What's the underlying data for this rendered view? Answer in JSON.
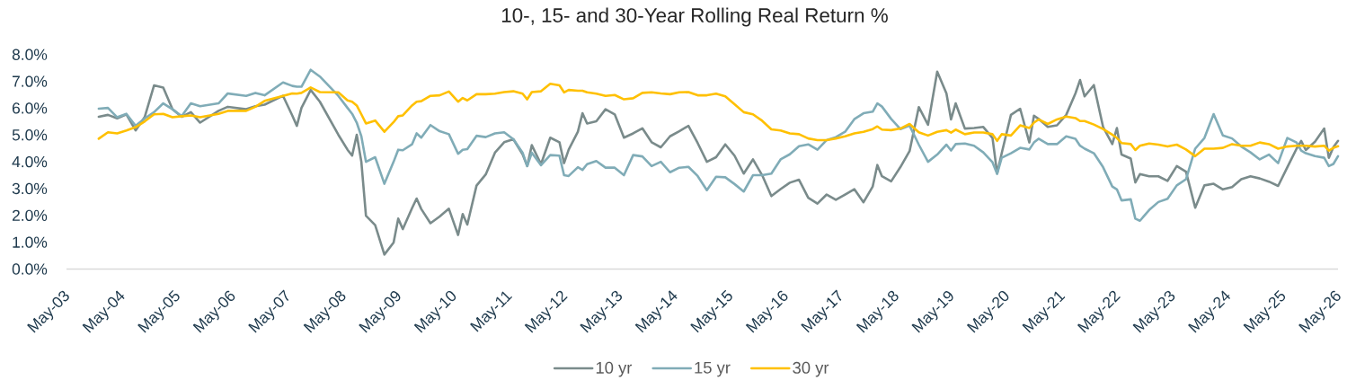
{
  "chart_data": {
    "type": "line",
    "title": "10-, 15- and 30-Year Rolling Real Return %",
    "x": [
      "2003-12",
      "2004-02",
      "2004-04",
      "2004-06",
      "2004-08",
      "2004-10",
      "2004-12",
      "2005-02",
      "2005-04",
      "2005-06",
      "2005-08",
      "2005-10",
      "2006-02",
      "2006-04",
      "2006-08",
      "2006-10",
      "2006-12",
      "2007-04",
      "2007-06",
      "2007-07",
      "2007-08",
      "2007-10",
      "2007-12",
      "2008-04",
      "2008-06",
      "2008-07",
      "2008-08",
      "2008-09",
      "2008-10",
      "2008-12",
      "2009-02",
      "2009-04",
      "2009-05",
      "2009-06",
      "2009-08",
      "2009-09",
      "2009-10",
      "2009-12",
      "2010-02",
      "2010-04",
      "2010-06",
      "2010-07",
      "2010-08",
      "2010-10",
      "2010-12",
      "2011-02",
      "2011-04",
      "2011-06",
      "2011-08",
      "2011-09",
      "2011-10",
      "2011-12",
      "2012-02",
      "2012-04",
      "2012-05",
      "2012-06",
      "2012-08",
      "2012-09",
      "2012-10",
      "2012-12",
      "2013-02",
      "2013-04",
      "2013-06",
      "2013-08",
      "2013-10",
      "2013-12",
      "2014-02",
      "2014-04",
      "2014-06",
      "2014-08",
      "2014-10",
      "2014-12",
      "2015-02",
      "2015-04",
      "2015-06",
      "2015-08",
      "2015-10",
      "2015-12",
      "2016-02",
      "2016-04",
      "2016-06",
      "2016-08",
      "2016-10",
      "2016-12",
      "2017-02",
      "2017-04",
      "2017-06",
      "2017-08",
      "2017-10",
      "2017-12",
      "2018-01",
      "2018-02",
      "2018-04",
      "2018-06",
      "2018-08",
      "2018-10",
      "2018-12",
      "2019-02",
      "2019-04",
      "2019-05",
      "2019-06",
      "2019-08",
      "2019-10",
      "2019-12",
      "2020-02",
      "2020-03",
      "2020-04",
      "2020-06",
      "2020-08",
      "2020-10",
      "2020-11",
      "2020-12",
      "2021-02",
      "2021-04",
      "2021-06",
      "2021-08",
      "2021-09",
      "2021-10",
      "2021-12",
      "2022-02",
      "2022-04",
      "2022-05",
      "2022-06",
      "2022-08",
      "2022-09",
      "2022-10",
      "2022-12",
      "2023-02",
      "2023-04",
      "2023-06",
      "2023-08",
      "2023-10",
      "2023-12",
      "2024-02",
      "2024-04",
      "2024-06",
      "2024-08",
      "2024-10",
      "2024-12",
      "2025-02",
      "2025-04",
      "2025-06",
      "2025-08",
      "2025-09",
      "2025-10",
      "2025-12",
      "2026-02",
      "2026-03",
      "2026-04",
      "2026-05"
    ],
    "series": [
      {
        "name": "10 yr",
        "color": "#7a8b8b",
        "values": [
          5.68,
          5.75,
          5.62,
          5.77,
          5.17,
          5.68,
          6.85,
          6.77,
          5.96,
          5.68,
          5.85,
          5.46,
          5.9,
          6.05,
          5.96,
          6.07,
          6.13,
          6.46,
          5.73,
          5.34,
          6.01,
          6.68,
          6.24,
          5.01,
          4.45,
          4.23,
          5.01,
          4.0,
          1.99,
          1.64,
          0.54,
          0.99,
          1.88,
          1.49,
          2.27,
          2.63,
          2.24,
          1.71,
          1.96,
          2.25,
          1.27,
          2.05,
          1.66,
          3.11,
          3.53,
          4.34,
          4.73,
          4.84,
          4.28,
          3.84,
          4.62,
          3.91,
          4.9,
          4.73,
          3.95,
          4.45,
          5.12,
          5.81,
          5.43,
          5.51,
          5.96,
          5.77,
          4.9,
          5.06,
          5.25,
          4.73,
          4.54,
          4.95,
          5.14,
          5.34,
          4.7,
          4.0,
          4.17,
          4.65,
          4.23,
          3.56,
          4.09,
          3.5,
          2.72,
          2.98,
          3.22,
          3.33,
          2.66,
          2.44,
          2.78,
          2.58,
          2.78,
          2.98,
          2.49,
          3.08,
          3.88,
          3.46,
          3.27,
          3.8,
          4.4,
          6.04,
          5.38,
          7.36,
          6.55,
          5.58,
          6.18,
          5.24,
          5.26,
          5.3,
          4.89,
          3.57,
          4.32,
          5.75,
          5.98,
          4.72,
          5.72,
          5.6,
          5.3,
          5.36,
          5.75,
          6.55,
          7.05,
          6.44,
          6.86,
          5.3,
          4.66,
          5.26,
          4.27,
          4.12,
          3.23,
          3.54,
          3.46,
          3.46,
          3.29,
          3.84,
          3.63,
          2.29,
          3.12,
          3.18,
          2.97,
          3.06,
          3.35,
          3.46,
          3.38,
          3.26,
          3.1,
          3.8,
          4.49,
          4.78,
          4.44,
          4.75,
          5.24,
          4.15,
          4.55,
          4.78
        ]
      },
      {
        "name": "15 yr",
        "color": "#80acb7",
        "values": [
          5.98,
          6.01,
          5.66,
          5.79,
          5.34,
          5.62,
          5.85,
          6.18,
          5.96,
          5.7,
          6.18,
          6.07,
          6.18,
          6.55,
          6.46,
          6.57,
          6.48,
          6.96,
          6.83,
          6.8,
          6.8,
          7.43,
          7.18,
          6.46,
          6.01,
          5.79,
          5.46,
          4.95,
          4.0,
          4.17,
          3.18,
          4.0,
          4.45,
          4.43,
          4.65,
          5.06,
          4.9,
          5.37,
          5.14,
          5.03,
          4.3,
          4.45,
          4.47,
          4.97,
          4.92,
          5.06,
          5.1,
          4.84,
          4.34,
          3.84,
          4.34,
          3.87,
          4.25,
          4.23,
          3.5,
          3.47,
          3.8,
          3.7,
          3.91,
          4.03,
          3.78,
          3.78,
          3.5,
          4.25,
          4.2,
          3.84,
          4.0,
          3.61,
          3.78,
          3.81,
          3.47,
          2.94,
          3.44,
          3.42,
          3.17,
          2.89,
          3.5,
          3.5,
          3.56,
          4.09,
          4.28,
          4.58,
          4.65,
          4.45,
          4.81,
          4.92,
          5.12,
          5.59,
          5.81,
          5.87,
          6.18,
          6.06,
          5.6,
          5.22,
          5.35,
          4.64,
          4.0,
          4.27,
          4.64,
          4.42,
          4.66,
          4.68,
          4.6,
          4.35,
          3.98,
          3.55,
          4.15,
          4.32,
          4.52,
          4.46,
          4.72,
          4.86,
          4.66,
          4.66,
          4.95,
          4.86,
          4.6,
          4.49,
          4.32,
          3.8,
          3.08,
          2.97,
          2.56,
          2.6,
          1.88,
          1.8,
          2.2,
          2.5,
          2.62,
          3.12,
          3.35,
          4.49,
          4.89,
          5.78,
          4.98,
          4.87,
          4.57,
          4.35,
          4.09,
          4.27,
          3.95,
          4.89,
          4.72,
          4.42,
          4.32,
          4.21,
          4.15,
          3.84,
          3.92,
          4.21
        ]
      },
      {
        "name": "30 yr",
        "color": "#ffc000",
        "values": [
          4.86,
          5.1,
          5.06,
          5.17,
          5.29,
          5.51,
          5.77,
          5.79,
          5.66,
          5.7,
          5.73,
          5.66,
          5.79,
          5.9,
          5.9,
          6.05,
          6.27,
          6.46,
          6.55,
          6.54,
          6.57,
          6.77,
          6.6,
          6.59,
          6.29,
          6.24,
          6.1,
          5.77,
          5.43,
          5.54,
          5.12,
          5.48,
          5.7,
          5.73,
          6.1,
          6.24,
          6.26,
          6.46,
          6.48,
          6.62,
          6.24,
          6.38,
          6.29,
          6.52,
          6.52,
          6.54,
          6.6,
          6.63,
          6.54,
          6.33,
          6.6,
          6.63,
          6.91,
          6.85,
          6.59,
          6.68,
          6.65,
          6.65,
          6.59,
          6.54,
          6.46,
          6.49,
          6.33,
          6.37,
          6.57,
          6.59,
          6.55,
          6.52,
          6.59,
          6.6,
          6.48,
          6.48,
          6.54,
          6.44,
          6.15,
          5.85,
          5.77,
          5.53,
          5.21,
          5.17,
          5.06,
          5.03,
          4.87,
          4.81,
          4.81,
          4.87,
          4.95,
          5.06,
          5.12,
          5.22,
          5.32,
          5.2,
          5.18,
          5.24,
          5.41,
          5.1,
          4.98,
          5.12,
          5.18,
          5.09,
          5.2,
          5.03,
          5.09,
          5.09,
          5.03,
          4.78,
          5.03,
          4.98,
          5.36,
          5.26,
          5.46,
          5.58,
          5.41,
          5.58,
          5.69,
          5.63,
          5.52,
          5.52,
          5.39,
          5.22,
          5.01,
          4.89,
          4.7,
          4.66,
          4.44,
          4.6,
          4.68,
          4.64,
          4.57,
          4.64,
          4.46,
          4.21,
          4.49,
          4.49,
          4.52,
          4.66,
          4.6,
          4.6,
          4.72,
          4.66,
          4.49,
          4.57,
          4.6,
          4.6,
          4.6,
          4.57,
          4.6,
          4.42,
          4.52,
          4.58
        ]
      }
    ],
    "xlim": [
      "2003-05",
      "2026-05"
    ],
    "xticks": [
      {
        "value": "2003-05",
        "label": "May-03"
      },
      {
        "value": "2004-05",
        "label": "May-04"
      },
      {
        "value": "2005-05",
        "label": "May-05"
      },
      {
        "value": "2006-05",
        "label": "May-06"
      },
      {
        "value": "2007-05",
        "label": "May-07"
      },
      {
        "value": "2008-05",
        "label": "May-08"
      },
      {
        "value": "2009-05",
        "label": "May-09"
      },
      {
        "value": "2010-05",
        "label": "May-10"
      },
      {
        "value": "2011-05",
        "label": "May-11"
      },
      {
        "value": "2012-05",
        "label": "May-12"
      },
      {
        "value": "2013-05",
        "label": "May-13"
      },
      {
        "value": "2014-05",
        "label": "May-14"
      },
      {
        "value": "2015-05",
        "label": "May-15"
      },
      {
        "value": "2016-05",
        "label": "May-16"
      },
      {
        "value": "2017-05",
        "label": "May-17"
      },
      {
        "value": "2018-05",
        "label": "May-18"
      },
      {
        "value": "2019-05",
        "label": "May-19"
      },
      {
        "value": "2020-05",
        "label": "May-20"
      },
      {
        "value": "2021-05",
        "label": "May-21"
      },
      {
        "value": "2022-05",
        "label": "May-22"
      },
      {
        "value": "2023-05",
        "label": "May-23"
      },
      {
        "value": "2024-05",
        "label": "May-24"
      },
      {
        "value": "2025-05",
        "label": "May-25"
      },
      {
        "value": "2026-05",
        "label": "May-26"
      }
    ],
    "ylim": [
      0,
      8
    ],
    "yticks": [
      {
        "value": 0,
        "label": "0.0%"
      },
      {
        "value": 1,
        "label": "1.0%"
      },
      {
        "value": 2,
        "label": "2.0%"
      },
      {
        "value": 3,
        "label": "3.0%"
      },
      {
        "value": 4,
        "label": "4.0%"
      },
      {
        "value": 5,
        "label": "5.0%"
      },
      {
        "value": 6,
        "label": "6.0%"
      },
      {
        "value": 7,
        "label": "7.0%"
      },
      {
        "value": 8,
        "label": "8.0%"
      }
    ],
    "grid": false,
    "legend": "bottom",
    "marker": "none",
    "line_style": "solid"
  }
}
